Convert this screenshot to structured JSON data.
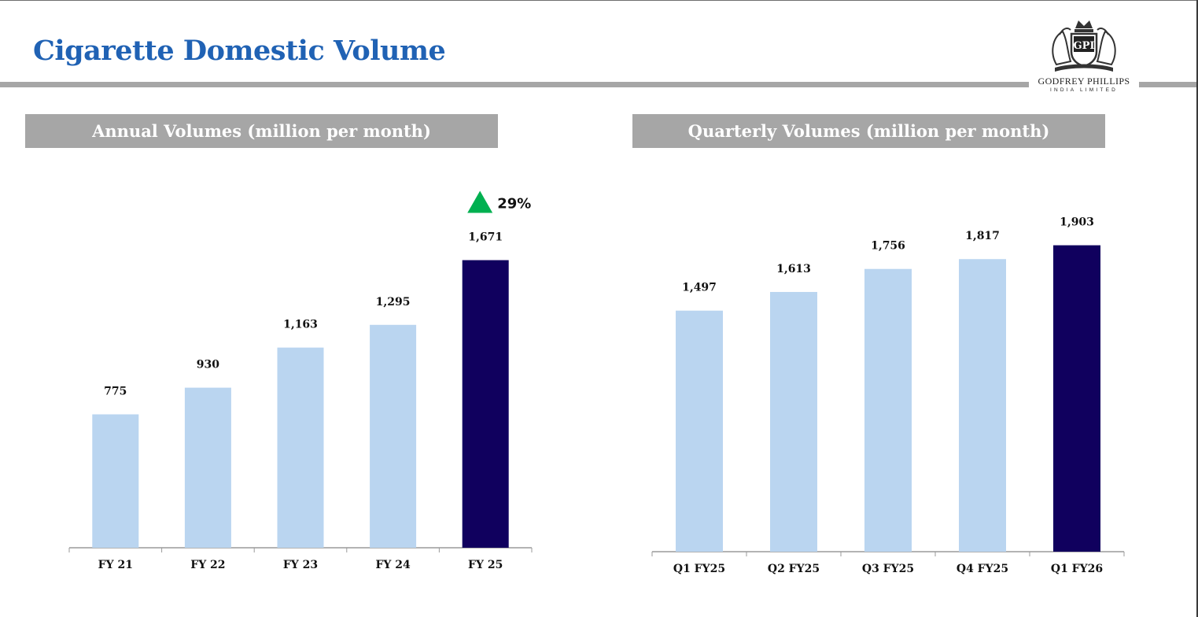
{
  "page": {
    "title": "Cigarette Domestic Volume"
  },
  "logo": {
    "monogram": "GPI",
    "name": "GODFREY PHILLIPS",
    "tagline": "INDIA LIMITED"
  },
  "colors": {
    "title": "#2062b4",
    "header_bg": "#a6a6a6",
    "bar": "#bad5f0",
    "highlight": "#10005e",
    "growth_arrow": "#00b050"
  },
  "chart_data": [
    {
      "type": "bar",
      "title": "Annual Volumes (million per month)",
      "categories": [
        "FY 21",
        "FY 22",
        "FY 23",
        "FY 24",
        "FY 25"
      ],
      "values": [
        775,
        930,
        1163,
        1295,
        1671
      ],
      "value_labels": [
        "775",
        "930",
        "1,163",
        "1,295",
        "1,671"
      ],
      "highlight_index": 4,
      "ylim": [
        0,
        2000
      ],
      "growth_label": "29%",
      "grid": false
    },
    {
      "type": "bar",
      "title": "Quarterly Volumes (million per month)",
      "categories": [
        "Q1 FY25",
        "Q2 FY25",
        "Q3 FY25",
        "Q4 FY25",
        "Q1 FY26"
      ],
      "values": [
        1497,
        1613,
        1756,
        1817,
        1903
      ],
      "value_labels": [
        "1,497",
        "1,613",
        "1,756",
        "1,817",
        "1,903"
      ],
      "highlight_index": 4,
      "ylim": [
        0,
        2000
      ],
      "grid": false
    }
  ]
}
